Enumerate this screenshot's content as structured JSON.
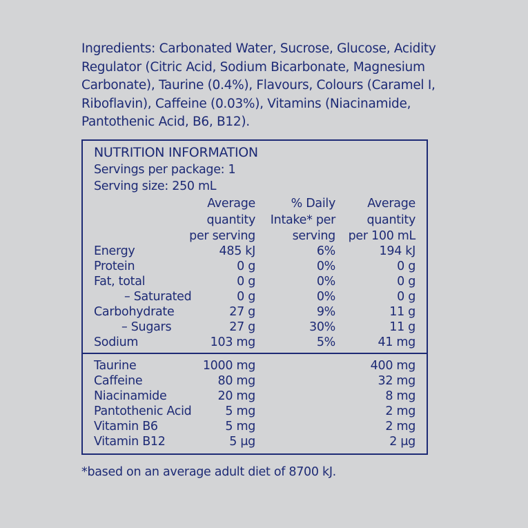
{
  "ingredients": {
    "lines": [
      "Ingredients: Carbonated Water, Sucrose, Glucose, Acidity",
      "Regulator (Citric Acid, Sodium Bicarbonate, Magnesium",
      "Carbonate), Taurine (0.4%), Flavours, Colours (Caramel I,",
      "Riboflavin), Caffeine (0.03%), Vitamins (Niacinamide,",
      "Pantothenic Acid, B6, B12)."
    ]
  },
  "panel": {
    "title": "NUTRITION INFORMATION",
    "servings_per_package": "Servings per package: 1",
    "serving_size": "Serving size: 250 mL",
    "column_headers": [
      [
        "Average",
        "quantity",
        "per serving"
      ],
      [
        "% Daily",
        "Intake* per",
        "serving"
      ],
      [
        "Average",
        "quantity",
        "per 100 mL"
      ]
    ],
    "rows": [
      {
        "label": "Energy",
        "per_serving": "485 kJ",
        "daily_intake": "6%",
        "per_100ml": "194 kJ"
      },
      {
        "label": "Protein",
        "per_serving": "0 g",
        "daily_intake": "0%",
        "per_100ml": "0 g"
      },
      {
        "label": "Fat, total",
        "per_serving": "0 g",
        "daily_intake": "0%",
        "per_100ml": "0 g"
      },
      {
        "label": "– Saturated",
        "per_serving": "0 g",
        "daily_intake": "0%",
        "per_100ml": "0 g"
      },
      {
        "label": "Carbohydrate",
        "per_serving": "27 g",
        "daily_intake": "9%",
        "per_100ml": "11 g"
      },
      {
        "label": "– Sugars",
        "per_serving": "27 g",
        "daily_intake": "30%",
        "per_100ml": "11 g"
      },
      {
        "label": "Sodium",
        "per_serving": "103 mg",
        "daily_intake": "5%",
        "per_100ml": "41 mg"
      }
    ],
    "extra_rows": [
      {
        "label": "Taurine",
        "per_serving": "1000 mg",
        "per_100ml": "400 mg"
      },
      {
        "label": "Caffeine",
        "per_serving": "80 mg",
        "per_100ml": "32 mg"
      },
      {
        "label": "Niacinamide",
        "per_serving": "20 mg",
        "per_100ml": "8 mg"
      },
      {
        "label": "Pantothenic Acid",
        "per_serving": "5 mg",
        "per_100ml": "2 mg"
      },
      {
        "label": "Vitamin B6",
        "per_serving": "5 mg",
        "per_100ml": "2 mg"
      },
      {
        "label": "Vitamin B12",
        "per_serving": "5 μg",
        "per_100ml": "2 μg"
      }
    ]
  },
  "footnote": "*based on an average adult diet of 8700 kJ."
}
